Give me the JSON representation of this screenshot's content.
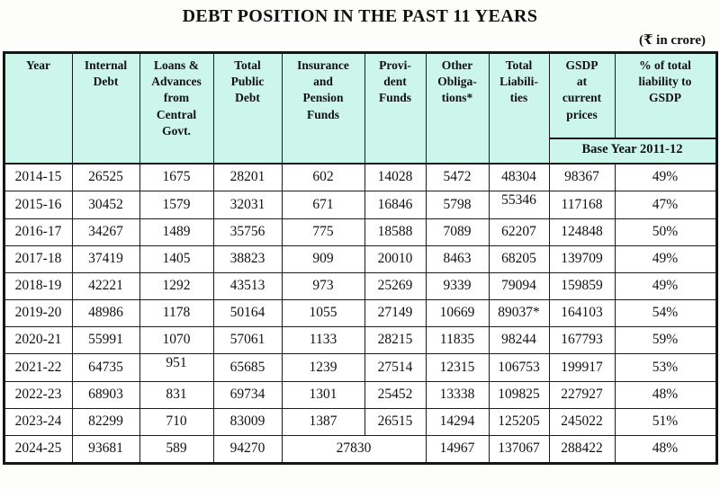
{
  "title": "DEBT POSITION IN THE PAST 11 YEARS",
  "unit_note": "(₹ in crore)",
  "colors": {
    "header_bg": "#ccf5eb",
    "border": "#161616",
    "text": "#111111",
    "body_bg": "#ffffff"
  },
  "table": {
    "base_year_label": "Base Year 2011-12",
    "columns": [
      {
        "key": "year",
        "label": "Year"
      },
      {
        "key": "internal_debt",
        "label": "Internal\nDebt"
      },
      {
        "key": "loans_advances",
        "label": "Loans &\nAdvances\nfrom\nCentral\nGovt."
      },
      {
        "key": "total_public_debt",
        "label": "Total\nPublic\nDebt"
      },
      {
        "key": "insurance_pension",
        "label": "Insurance\nand\nPension\nFunds"
      },
      {
        "key": "provident",
        "label": "Provi-\ndent\nFunds"
      },
      {
        "key": "other_obligations",
        "label": "Other\nObliga-\ntions*"
      },
      {
        "key": "total_liabilities",
        "label": "Total\nLiabili-\nties"
      },
      {
        "key": "gsdp",
        "label": "GSDP\nat\ncurrent\nprices"
      },
      {
        "key": "pct_gsdp",
        "label": "% of total\nliability to\nGSDP"
      }
    ],
    "rows": [
      {
        "year": "2014-15",
        "internal_debt": "26525",
        "loans_advances": "1675",
        "total_public_debt": "28201",
        "insurance_pension": "602",
        "provident": "14028",
        "other_obligations": "5472",
        "total_liabilities": "48304",
        "gsdp": "98367",
        "pct_gsdp": "49%"
      },
      {
        "year": "2015-16",
        "internal_debt": "30452",
        "loans_advances": "1579",
        "total_public_debt": "32031",
        "insurance_pension": "671",
        "provident": "16846",
        "other_obligations": "5798",
        "total_liabilities": "55346",
        "gsdp": "117168",
        "pct_gsdp": "47%",
        "raised": "total_liabilities"
      },
      {
        "year": "2016-17",
        "internal_debt": "34267",
        "loans_advances": "1489",
        "total_public_debt": "35756",
        "insurance_pension": "775",
        "provident": "18588",
        "other_obligations": "7089",
        "total_liabilities": "62207",
        "gsdp": "124848",
        "pct_gsdp": "50%"
      },
      {
        "year": "2017-18",
        "internal_debt": "37419",
        "loans_advances": "1405",
        "total_public_debt": "38823",
        "insurance_pension": "909",
        "provident": "20010",
        "other_obligations": "8463",
        "total_liabilities": "68205",
        "gsdp": "139709",
        "pct_gsdp": "49%"
      },
      {
        "year": "2018-19",
        "internal_debt": "42221",
        "loans_advances": "1292",
        "total_public_debt": "43513",
        "insurance_pension": "973",
        "provident": "25269",
        "other_obligations": "9339",
        "total_liabilities": "79094",
        "gsdp": "159859",
        "pct_gsdp": "49%"
      },
      {
        "year": "2019-20",
        "internal_debt": "48986",
        "loans_advances": "1178",
        "total_public_debt": "50164",
        "insurance_pension": "1055",
        "provident": "27149",
        "other_obligations": "10669",
        "total_liabilities": "89037*",
        "gsdp": "164103",
        "pct_gsdp": "54%"
      },
      {
        "year": "2020-21",
        "internal_debt": "55991",
        "loans_advances": "1070",
        "total_public_debt": "57061",
        "insurance_pension": "1133",
        "provident": "28215",
        "other_obligations": "11835",
        "total_liabilities": "98244",
        "gsdp": "167793",
        "pct_gsdp": "59%"
      },
      {
        "year": "2021-22",
        "internal_debt": "64735",
        "loans_advances": "951",
        "total_public_debt": "65685",
        "insurance_pension": "1239",
        "provident": "27514",
        "other_obligations": "12315",
        "total_liabilities": "106753",
        "gsdp": "199917",
        "pct_gsdp": "53%",
        "raised": "loans_advances"
      },
      {
        "year": "2022-23",
        "internal_debt": "68903",
        "loans_advances": "831",
        "total_public_debt": "69734",
        "insurance_pension": "1301",
        "provident": "25452",
        "other_obligations": "13338",
        "total_liabilities": "109825",
        "gsdp": "227927",
        "pct_gsdp": "48%"
      },
      {
        "year": "2023-24",
        "internal_debt": "82299",
        "loans_advances": "710",
        "total_public_debt": "83009",
        "insurance_pension": "1387",
        "provident": "26515",
        "other_obligations": "14294",
        "total_liabilities": "125205",
        "gsdp": "245022",
        "pct_gsdp": "51%"
      },
      {
        "year": "2024-25",
        "internal_debt": "93681",
        "loans_advances": "589",
        "total_public_debt": "94270",
        "insurance_provident_merged": "27830",
        "other_obligations": "14967",
        "total_liabilities": "137067",
        "gsdp": "288422",
        "pct_gsdp": "48%"
      }
    ]
  }
}
